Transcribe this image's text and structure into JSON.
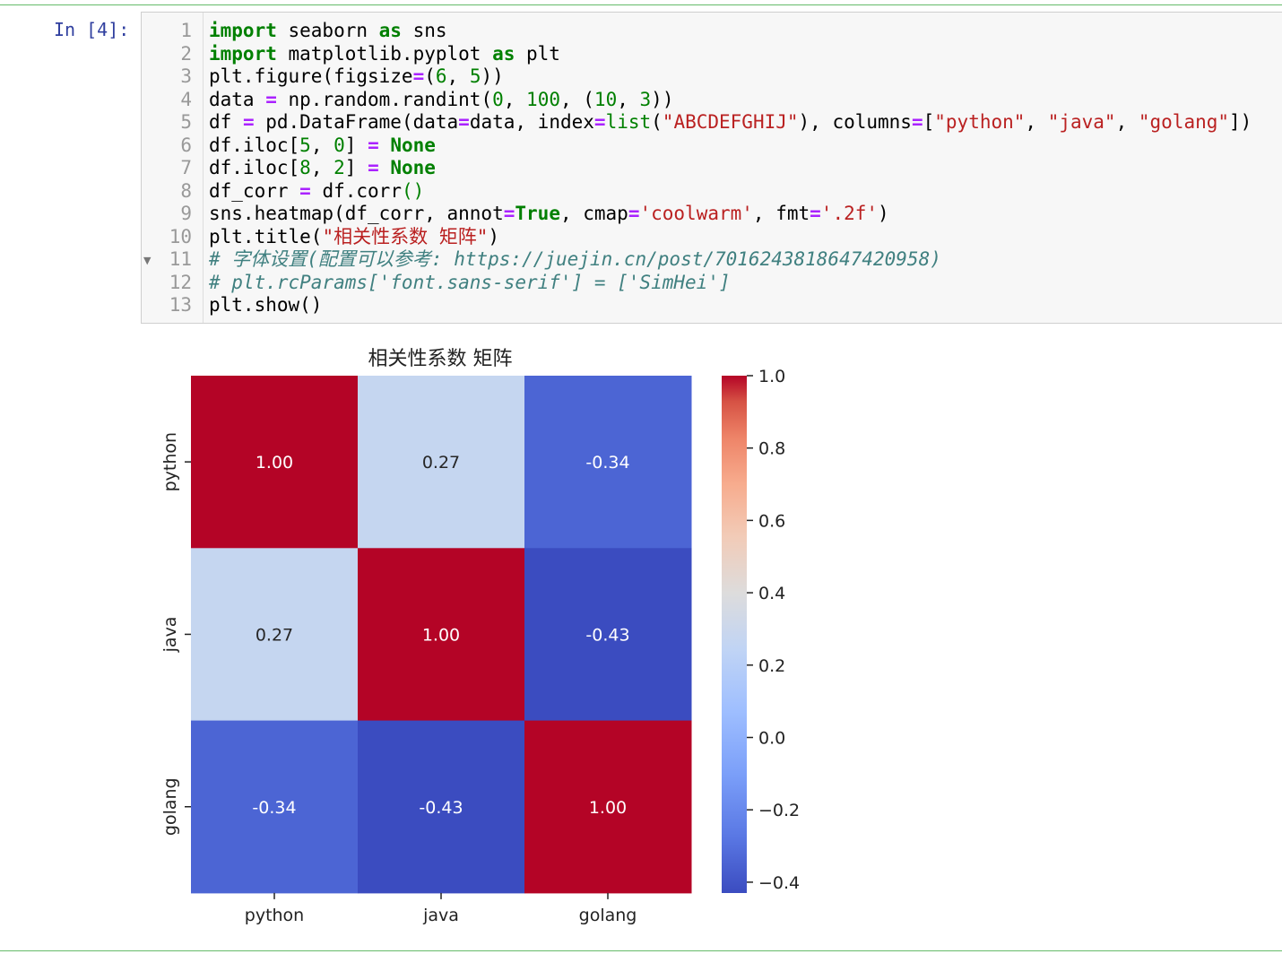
{
  "cell": {
    "prompt": "In [4]:",
    "line_numbers": [
      "1",
      "2",
      "3",
      "4",
      "5",
      "6",
      "7",
      "8",
      "9",
      "10",
      "11",
      "12",
      "13"
    ],
    "lines": [
      [
        [
          "kw",
          "import"
        ],
        [
          "t",
          " seaborn "
        ],
        [
          "kw",
          "as"
        ],
        [
          "t",
          " sns"
        ]
      ],
      [
        [
          "kw",
          "import"
        ],
        [
          "t",
          " matplotlib.pyplot "
        ],
        [
          "kw",
          "as"
        ],
        [
          "t",
          " plt"
        ]
      ],
      [
        [
          "t",
          "plt.figure(figsize"
        ],
        [
          "op",
          "="
        ],
        [
          "t",
          "("
        ],
        [
          "num",
          "6"
        ],
        [
          "t",
          ", "
        ],
        [
          "num",
          "5"
        ],
        [
          "t",
          "))"
        ]
      ],
      [
        [
          "t",
          "data "
        ],
        [
          "op",
          "="
        ],
        [
          "t",
          " np.random.randint("
        ],
        [
          "num",
          "0"
        ],
        [
          "t",
          ", "
        ],
        [
          "num",
          "100"
        ],
        [
          "t",
          ", ("
        ],
        [
          "num",
          "10"
        ],
        [
          "t",
          ", "
        ],
        [
          "num",
          "3"
        ],
        [
          "t",
          "))"
        ]
      ],
      [
        [
          "t",
          "df "
        ],
        [
          "op",
          "="
        ],
        [
          "t",
          " pd.DataFrame(data"
        ],
        [
          "op",
          "="
        ],
        [
          "t",
          "data, index"
        ],
        [
          "op",
          "="
        ],
        [
          "num",
          "list"
        ],
        [
          "t",
          "("
        ],
        [
          "str",
          "\"ABCDEFGHIJ\""
        ],
        [
          "t",
          "), columns"
        ],
        [
          "op",
          "="
        ],
        [
          "t",
          "["
        ],
        [
          "str",
          "\"python\""
        ],
        [
          "t",
          ", "
        ],
        [
          "str",
          "\"java\""
        ],
        [
          "t",
          ", "
        ],
        [
          "str",
          "\"golang\""
        ],
        [
          "t",
          "])"
        ]
      ],
      [
        [
          "t",
          "df.iloc["
        ],
        [
          "num",
          "5"
        ],
        [
          "t",
          ", "
        ],
        [
          "num",
          "0"
        ],
        [
          "t",
          "] "
        ],
        [
          "op",
          "="
        ],
        [
          "t",
          " "
        ],
        [
          "kw",
          "None"
        ]
      ],
      [
        [
          "t",
          "df.iloc["
        ],
        [
          "num",
          "8"
        ],
        [
          "t",
          ", "
        ],
        [
          "num",
          "2"
        ],
        [
          "t",
          "] "
        ],
        [
          "op",
          "="
        ],
        [
          "t",
          " "
        ],
        [
          "kw",
          "None"
        ]
      ],
      [
        [
          "t",
          "df_corr "
        ],
        [
          "op",
          "="
        ],
        [
          "t",
          " df.corr"
        ],
        [
          "num",
          "()"
        ]
      ],
      [
        [
          "t",
          "sns.heatmap(df_corr, annot"
        ],
        [
          "op",
          "="
        ],
        [
          "kw",
          "True"
        ],
        [
          "t",
          ", cmap"
        ],
        [
          "op",
          "="
        ],
        [
          "str",
          "'coolwarm'"
        ],
        [
          "t",
          ", fmt"
        ],
        [
          "op",
          "="
        ],
        [
          "str",
          "'.2f'"
        ],
        [
          "t",
          ")"
        ]
      ],
      [
        [
          "t",
          "plt.title("
        ],
        [
          "str",
          "\"相关性系数 矩阵\""
        ],
        [
          "t",
          ")"
        ]
      ],
      [
        [
          "cm",
          "# 字体设置(配置可以参考: https://juejin.cn/post/7016243818647420958)"
        ]
      ],
      [
        [
          "cm",
          "# plt.rcParams['font.sans-serif'] = ['SimHei']"
        ]
      ],
      [
        [
          "t",
          "plt.show()"
        ]
      ]
    ]
  },
  "chart_data": {
    "type": "heatmap",
    "title": "相关性系数 矩阵",
    "x_categories": [
      "python",
      "java",
      "golang"
    ],
    "y_categories": [
      "python",
      "java",
      "golang"
    ],
    "values": [
      [
        1.0,
        0.27,
        -0.34
      ],
      [
        0.27,
        1.0,
        -0.43
      ],
      [
        -0.34,
        -0.43,
        1.0
      ]
    ],
    "annotations": [
      [
        "1.00",
        "0.27",
        "-0.34"
      ],
      [
        "0.27",
        "1.00",
        "-0.43"
      ],
      [
        "-0.34",
        "-0.43",
        "1.00"
      ]
    ],
    "colormap": "coolwarm",
    "vmin": -0.43,
    "vmax": 1.0,
    "colorbar_ticks": [
      1.0,
      0.8,
      0.6,
      0.4,
      0.2,
      0.0,
      -0.2,
      -0.4
    ],
    "colorbar_tick_labels": [
      "1.0",
      "0.8",
      "0.6",
      "0.4",
      "0.2",
      "0.0",
      "−0.2",
      "−0.4"
    ],
    "colors": {
      "cold": "#3b4cc0",
      "neutral": "#dddcdc",
      "hot": "#b40426"
    }
  }
}
